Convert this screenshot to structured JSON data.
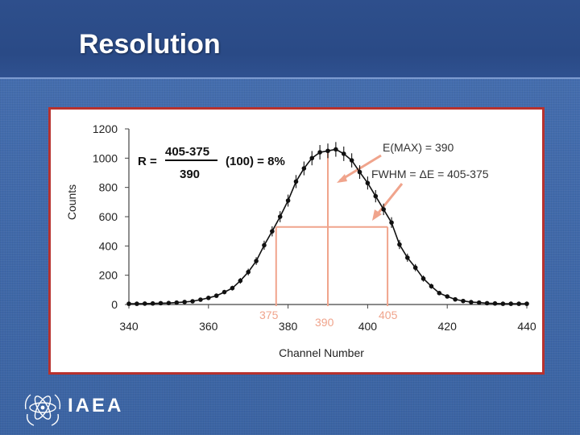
{
  "slide": {
    "title": "Resolution",
    "logo_text": "IAEA",
    "colors": {
      "background": "#3f6aa9",
      "title_band": "#2e4f8c",
      "frame_border": "#b8322e",
      "marker_lines": "#f0a48c",
      "data_points": "#111111"
    }
  },
  "chart_data": {
    "type": "scatter",
    "title": "",
    "xlabel": "Channel Number",
    "ylabel": "Counts",
    "xlim": [
      340,
      440
    ],
    "ylim": [
      0,
      1200
    ],
    "xticks": [
      340,
      360,
      380,
      400,
      420,
      440
    ],
    "yticks": [
      0,
      200,
      400,
      600,
      800,
      1000,
      1200
    ],
    "grid": false,
    "legend": "none",
    "series": [
      {
        "x": [
          340,
          342,
          344,
          346,
          348,
          350,
          352,
          354,
          356,
          358,
          360,
          362,
          364,
          366,
          368,
          370,
          372,
          374,
          376,
          378,
          380,
          382,
          384,
          386,
          388,
          390,
          392,
          394,
          396,
          398,
          400,
          402,
          404,
          406,
          408,
          410,
          412,
          414,
          416,
          418,
          420,
          422,
          424,
          426,
          428,
          430,
          432,
          434,
          436,
          438,
          440
        ],
        "y": [
          5,
          5,
          6,
          7,
          9,
          10,
          13,
          17,
          22,
          33,
          45,
          60,
          85,
          112,
          162,
          222,
          297,
          405,
          500,
          600,
          710,
          840,
          930,
          1000,
          1040,
          1050,
          1060,
          1030,
          985,
          905,
          830,
          740,
          650,
          560,
          410,
          320,
          252,
          177,
          125,
          78,
          55,
          35,
          24,
          16,
          13,
          9,
          7,
          5,
          5,
          5,
          5
        ]
      }
    ],
    "annotations": {
      "formula_prefix": "R =",
      "formula_numerator": "405-375",
      "formula_denominator": "390",
      "formula_suffix": "(100) = 8%",
      "emax_label": "E(MAX) = 390",
      "fwhm_label": "FWHM = ΔE = 405-375",
      "marker_375": "375",
      "marker_390": "390",
      "marker_405": "405",
      "half_max": 530,
      "peak": 1050,
      "x_375": 377,
      "x_390": 390,
      "x_405": 405
    }
  }
}
